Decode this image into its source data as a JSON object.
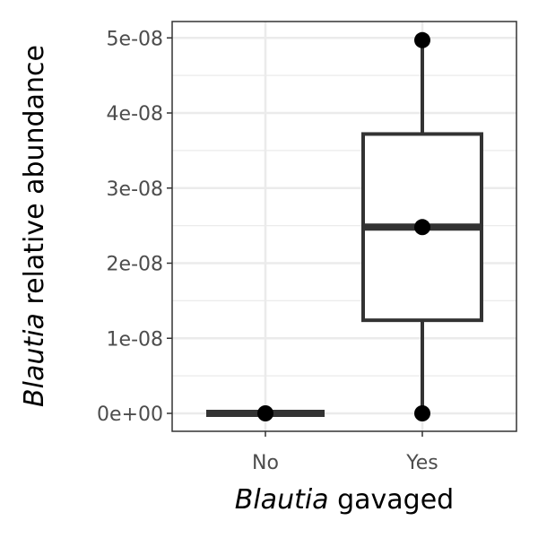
{
  "chart_data": {
    "type": "box",
    "xlabel_italic": "Blautia",
    "xlabel_rest": " gavaged",
    "ylabel_italic": "Blautia",
    "ylabel_rest": " relative abundance",
    "categories": [
      "No",
      "Yes"
    ],
    "ylim": [
      -2.5e-09,
      5.2e-08
    ],
    "yticks": [
      0,
      1e-08,
      2e-08,
      3e-08,
      4e-08,
      5e-08
    ],
    "ytick_labels": [
      "0e+00",
      "1e-08",
      "2e-08",
      "3e-08",
      "4e-08",
      "5e-08"
    ],
    "grid": true,
    "boxes": [
      {
        "category": "No",
        "min": 0,
        "q1": 0,
        "median": 0,
        "q3": 0,
        "max": 0
      },
      {
        "category": "Yes",
        "min": 0,
        "q1": 1.24e-08,
        "median": 2.48e-08,
        "q3": 3.72e-08,
        "max": 4.97e-08
      }
    ],
    "points": [
      {
        "category": "No",
        "y": 0
      },
      {
        "category": "Yes",
        "y": 0
      },
      {
        "category": "Yes",
        "y": 2.48e-08
      },
      {
        "category": "Yes",
        "y": 4.97e-08
      }
    ],
    "colors": {
      "box": "#333333",
      "point": "#000000",
      "grid": "#ebebeb",
      "panel_border": "#333333"
    }
  }
}
